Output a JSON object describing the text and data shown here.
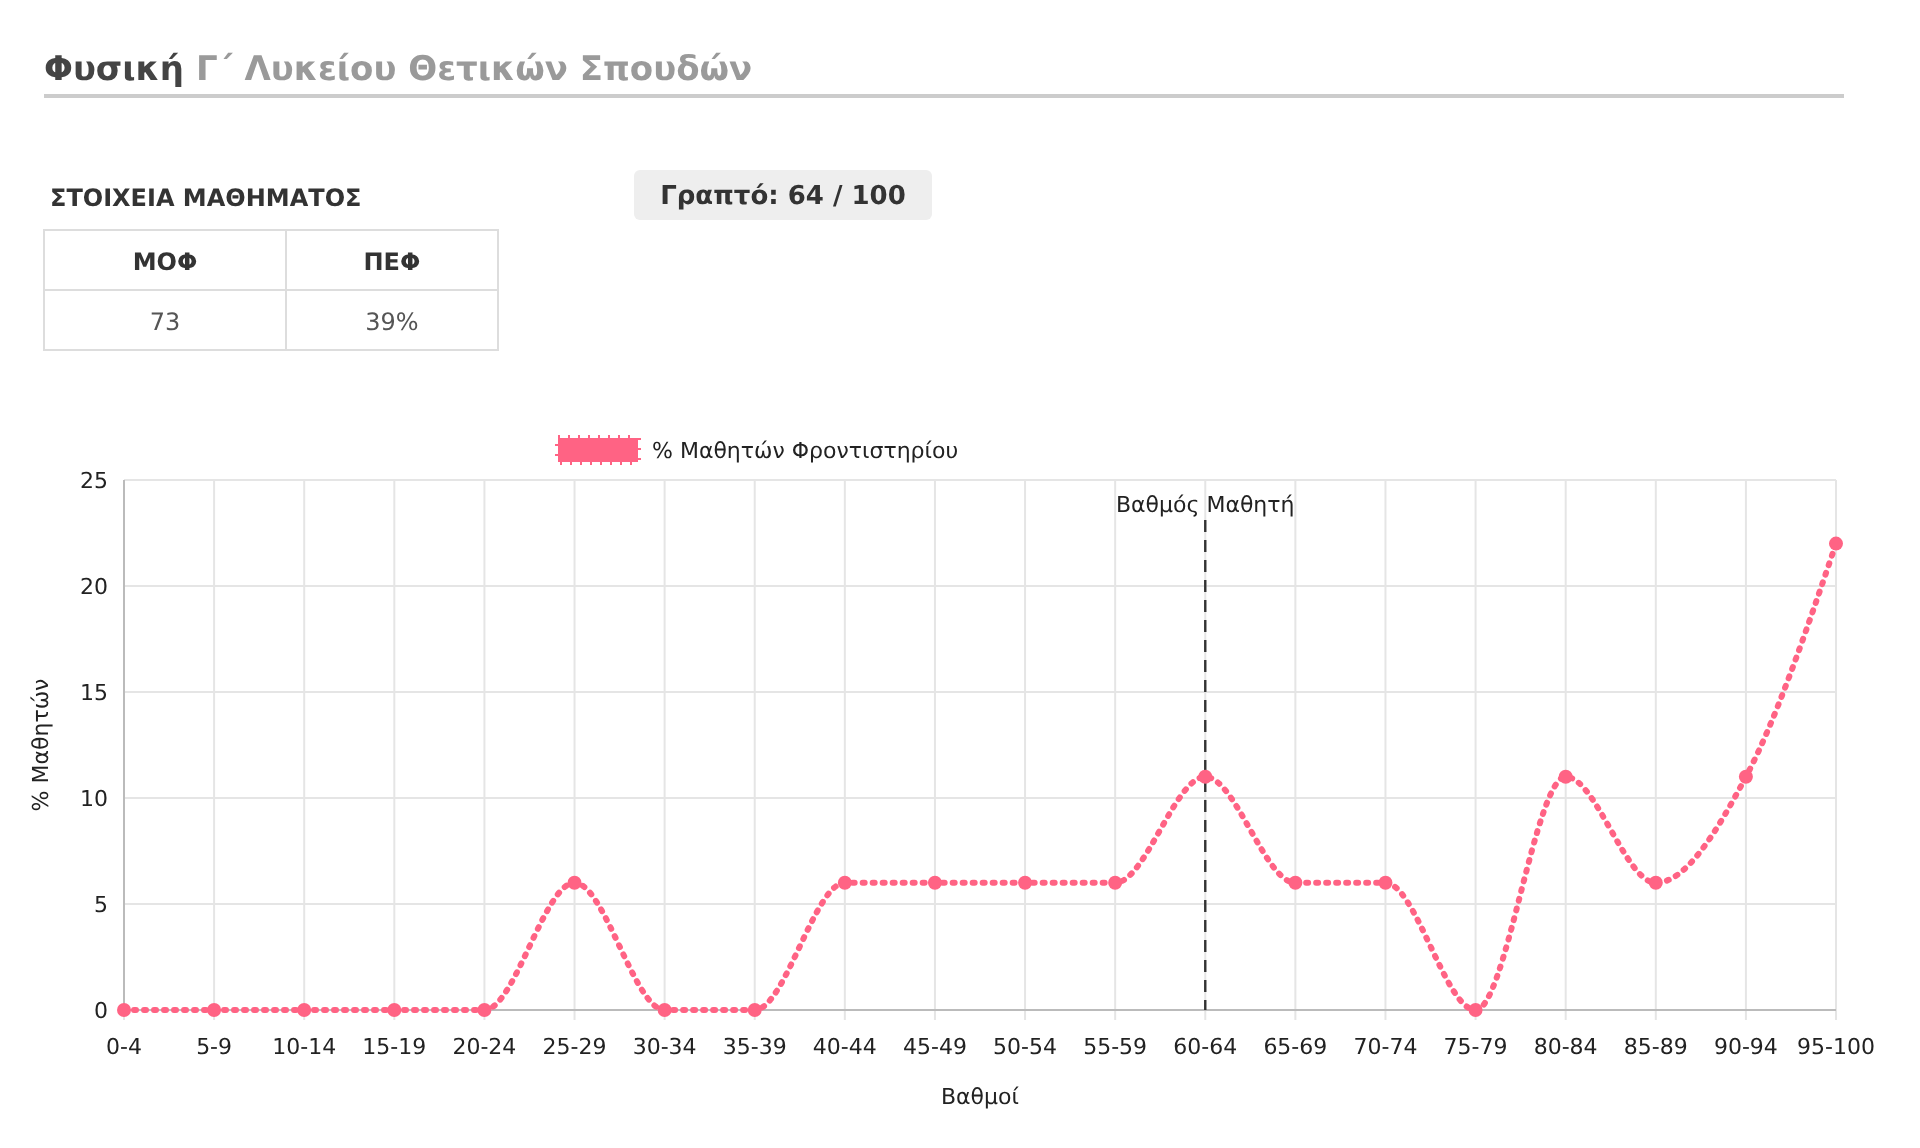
{
  "chart_data": {
    "type": "line",
    "title": "Φυσική",
    "subtitle": "Γ΄ Λυκείου Θετικών Σπουδών",
    "annotations": [
      "Γραπτό: 64 / 100",
      "ΣΤΟΙΧΕΙΑ ΜΑΘΗΜΑΤΟΣ",
      "ΜΟΦ",
      "ΠΕΦ",
      "73",
      "39%"
    ],
    "xlabel": "Βαθμοί",
    "ylabel": "% Μαθητών",
    "categories": [
      "0-4",
      "5-9",
      "10-14",
      "15-19",
      "20-24",
      "25-29",
      "30-34",
      "35-39",
      "40-44",
      "45-49",
      "50-54",
      "55-59",
      "60-64",
      "65-69",
      "70-74",
      "75-79",
      "80-84",
      "85-89",
      "90-94",
      "95-100"
    ],
    "series": [
      {
        "name": "% Μαθητών Φροντιστηρίου",
        "color": "#ff6384",
        "values": [
          0,
          0,
          0,
          0,
          0,
          6,
          0,
          0,
          6,
          6,
          6,
          6,
          11,
          6,
          6,
          0,
          11,
          6,
          11,
          22
        ]
      }
    ],
    "ylim": [
      0,
      25
    ],
    "yticks": [
      0,
      5,
      10,
      15,
      20,
      25
    ],
    "grid": true,
    "legend": "top",
    "marker": "circle",
    "line_style": "dotted",
    "ref_lines": [
      {
        "axis": "x",
        "value": "60-64",
        "label": "Βαθμός Μαθητή",
        "line_style": "dashed",
        "color": "#333333"
      }
    ]
  }
}
